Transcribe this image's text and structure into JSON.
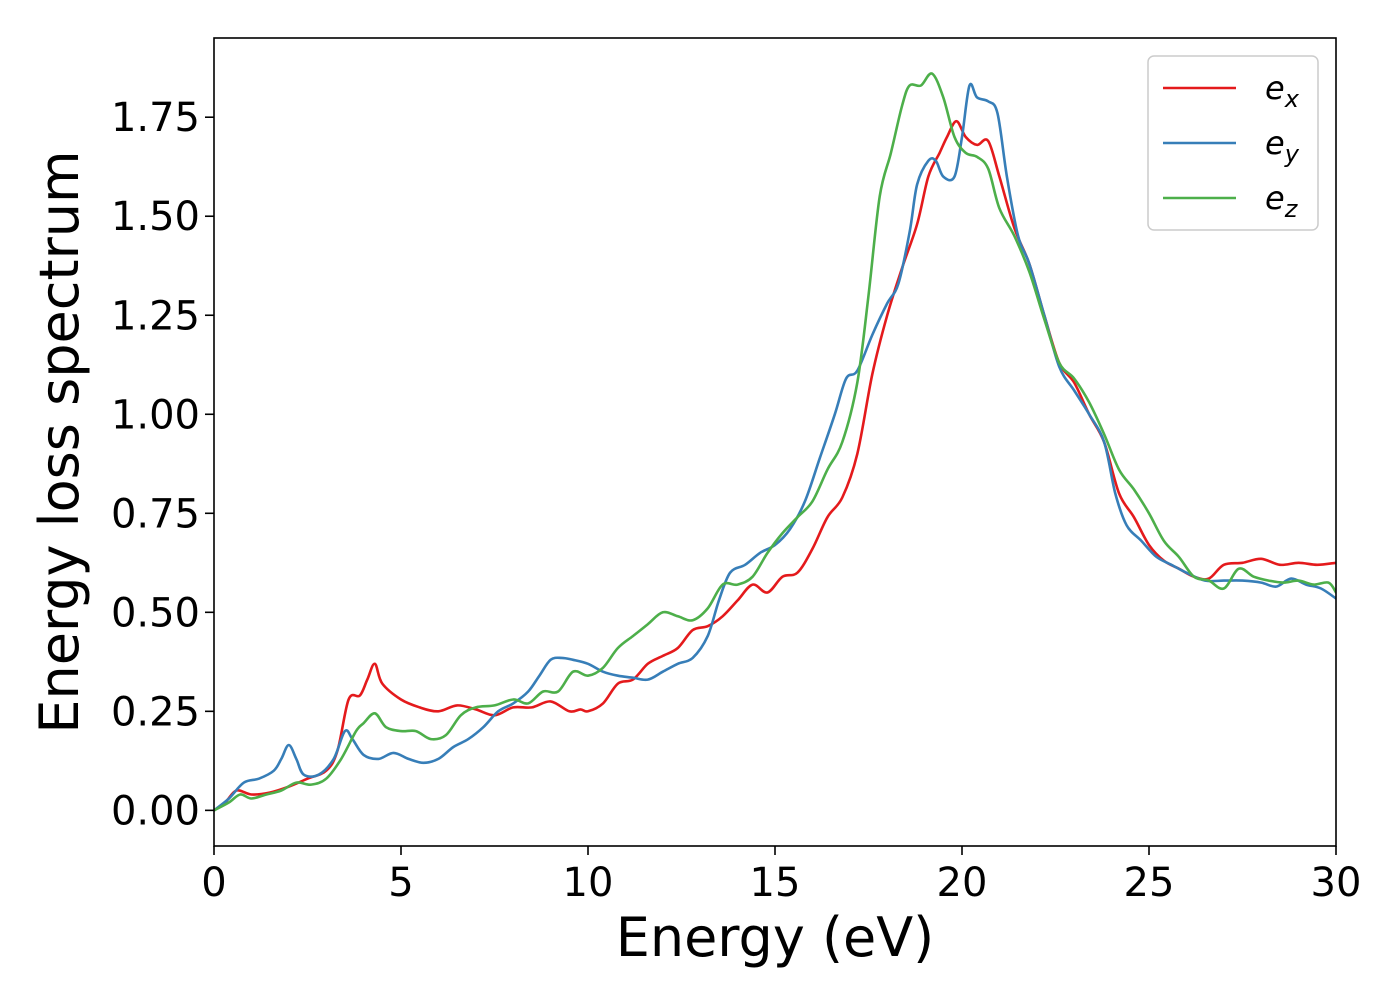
{
  "chart_data": {
    "type": "line",
    "title": "",
    "xlabel": "Energy (eV)",
    "ylabel": "Energy loss spectrum",
    "xlim": [
      0,
      30
    ],
    "ylim": [
      -0.09,
      1.95
    ],
    "xticks": [
      0,
      5,
      10,
      15,
      20,
      25,
      30
    ],
    "xtick_labels": [
      "0",
      "5",
      "10",
      "15",
      "20",
      "25",
      "30"
    ],
    "yticks": [
      0.0,
      0.25,
      0.5,
      0.75,
      1.0,
      1.25,
      1.5,
      1.75
    ],
    "ytick_labels": [
      "0.00",
      "0.25",
      "0.50",
      "0.75",
      "1.00",
      "1.25",
      "1.50",
      "1.75"
    ],
    "grid": false,
    "legend_position": "top-right",
    "series": [
      {
        "name": "e_x",
        "label_base": "e",
        "label_sub": "x",
        "color": "#e41a1c",
        "points": [
          [
            0,
            0
          ],
          [
            0.3,
            0.02
          ],
          [
            0.6,
            0.05
          ],
          [
            1.0,
            0.04
          ],
          [
            1.5,
            0.045
          ],
          [
            2.0,
            0.06
          ],
          [
            2.5,
            0.08
          ],
          [
            3.0,
            0.1
          ],
          [
            3.3,
            0.15
          ],
          [
            3.6,
            0.28
          ],
          [
            3.9,
            0.29
          ],
          [
            4.1,
            0.33
          ],
          [
            4.3,
            0.37
          ],
          [
            4.5,
            0.32
          ],
          [
            5.0,
            0.28
          ],
          [
            5.5,
            0.26
          ],
          [
            6.0,
            0.25
          ],
          [
            6.5,
            0.265
          ],
          [
            7.0,
            0.255
          ],
          [
            7.5,
            0.24
          ],
          [
            8.0,
            0.26
          ],
          [
            8.5,
            0.26
          ],
          [
            9.0,
            0.275
          ],
          [
            9.5,
            0.25
          ],
          [
            9.8,
            0.255
          ],
          [
            10.0,
            0.25
          ],
          [
            10.4,
            0.27
          ],
          [
            10.8,
            0.32
          ],
          [
            11.2,
            0.33
          ],
          [
            11.6,
            0.37
          ],
          [
            12.0,
            0.39
          ],
          [
            12.4,
            0.41
          ],
          [
            12.8,
            0.455
          ],
          [
            13.2,
            0.465
          ],
          [
            13.6,
            0.49
          ],
          [
            14.0,
            0.53
          ],
          [
            14.4,
            0.57
          ],
          [
            14.8,
            0.55
          ],
          [
            15.2,
            0.59
          ],
          [
            15.6,
            0.6
          ],
          [
            16.0,
            0.66
          ],
          [
            16.4,
            0.74
          ],
          [
            16.8,
            0.79
          ],
          [
            17.2,
            0.9
          ],
          [
            17.6,
            1.1
          ],
          [
            18.0,
            1.25
          ],
          [
            18.4,
            1.37
          ],
          [
            18.8,
            1.48
          ],
          [
            19.1,
            1.6
          ],
          [
            19.4,
            1.66
          ],
          [
            19.6,
            1.7
          ],
          [
            19.85,
            1.74
          ],
          [
            20.1,
            1.7
          ],
          [
            20.4,
            1.68
          ],
          [
            20.7,
            1.69
          ],
          [
            21.0,
            1.6
          ],
          [
            21.4,
            1.47
          ],
          [
            21.8,
            1.38
          ],
          [
            22.2,
            1.25
          ],
          [
            22.6,
            1.13
          ],
          [
            23.0,
            1.08
          ],
          [
            23.4,
            1.0
          ],
          [
            23.8,
            0.93
          ],
          [
            24.2,
            0.8
          ],
          [
            24.6,
            0.74
          ],
          [
            25.0,
            0.67
          ],
          [
            25.4,
            0.63
          ],
          [
            25.8,
            0.61
          ],
          [
            26.2,
            0.59
          ],
          [
            26.6,
            0.585
          ],
          [
            27.0,
            0.62
          ],
          [
            27.5,
            0.625
          ],
          [
            28.0,
            0.635
          ],
          [
            28.5,
            0.62
          ],
          [
            29.0,
            0.625
          ],
          [
            29.5,
            0.62
          ],
          [
            30.0,
            0.625
          ]
        ]
      },
      {
        "name": "e_y",
        "label_base": "e",
        "label_sub": "y",
        "color": "#377eb8",
        "points": [
          [
            0,
            0
          ],
          [
            0.4,
            0.03
          ],
          [
            0.8,
            0.07
          ],
          [
            1.2,
            0.08
          ],
          [
            1.6,
            0.1
          ],
          [
            1.8,
            0.13
          ],
          [
            2.0,
            0.165
          ],
          [
            2.2,
            0.13
          ],
          [
            2.4,
            0.09
          ],
          [
            2.8,
            0.09
          ],
          [
            3.2,
            0.13
          ],
          [
            3.5,
            0.2
          ],
          [
            3.7,
            0.18
          ],
          [
            4.0,
            0.14
          ],
          [
            4.4,
            0.13
          ],
          [
            4.8,
            0.145
          ],
          [
            5.2,
            0.13
          ],
          [
            5.6,
            0.12
          ],
          [
            6.0,
            0.13
          ],
          [
            6.4,
            0.16
          ],
          [
            6.8,
            0.18
          ],
          [
            7.2,
            0.21
          ],
          [
            7.6,
            0.25
          ],
          [
            8.0,
            0.27
          ],
          [
            8.4,
            0.3
          ],
          [
            8.7,
            0.34
          ],
          [
            9.0,
            0.38
          ],
          [
            9.3,
            0.385
          ],
          [
            9.6,
            0.38
          ],
          [
            10.0,
            0.37
          ],
          [
            10.4,
            0.35
          ],
          [
            10.8,
            0.34
          ],
          [
            11.2,
            0.335
          ],
          [
            11.6,
            0.33
          ],
          [
            12.0,
            0.35
          ],
          [
            12.4,
            0.37
          ],
          [
            12.8,
            0.385
          ],
          [
            13.2,
            0.44
          ],
          [
            13.5,
            0.53
          ],
          [
            13.8,
            0.6
          ],
          [
            14.2,
            0.62
          ],
          [
            14.6,
            0.65
          ],
          [
            15.0,
            0.67
          ],
          [
            15.4,
            0.71
          ],
          [
            15.8,
            0.78
          ],
          [
            16.2,
            0.89
          ],
          [
            16.6,
            1.0
          ],
          [
            16.9,
            1.09
          ],
          [
            17.2,
            1.11
          ],
          [
            17.6,
            1.2
          ],
          [
            18.0,
            1.28
          ],
          [
            18.3,
            1.33
          ],
          [
            18.6,
            1.46
          ],
          [
            18.8,
            1.58
          ],
          [
            19.1,
            1.64
          ],
          [
            19.3,
            1.64
          ],
          [
            19.5,
            1.6
          ],
          [
            19.8,
            1.6
          ],
          [
            20.0,
            1.7
          ],
          [
            20.2,
            1.83
          ],
          [
            20.4,
            1.8
          ],
          [
            20.7,
            1.79
          ],
          [
            20.95,
            1.76
          ],
          [
            21.2,
            1.6
          ],
          [
            21.5,
            1.45
          ],
          [
            21.8,
            1.38
          ],
          [
            22.2,
            1.25
          ],
          [
            22.6,
            1.12
          ],
          [
            23.0,
            1.06
          ],
          [
            23.4,
            1.0
          ],
          [
            23.8,
            0.93
          ],
          [
            24.1,
            0.8
          ],
          [
            24.4,
            0.72
          ],
          [
            24.8,
            0.68
          ],
          [
            25.2,
            0.64
          ],
          [
            25.6,
            0.62
          ],
          [
            26.0,
            0.6
          ],
          [
            26.5,
            0.58
          ],
          [
            27.0,
            0.58
          ],
          [
            27.5,
            0.58
          ],
          [
            28.0,
            0.575
          ],
          [
            28.4,
            0.565
          ],
          [
            28.8,
            0.585
          ],
          [
            29.2,
            0.57
          ],
          [
            29.6,
            0.56
          ],
          [
            30.0,
            0.535
          ]
        ]
      },
      {
        "name": "e_z",
        "label_base": "e",
        "label_sub": "z",
        "color": "#4daf4a",
        "points": [
          [
            0,
            0
          ],
          [
            0.4,
            0.02
          ],
          [
            0.7,
            0.04
          ],
          [
            1.0,
            0.03
          ],
          [
            1.4,
            0.04
          ],
          [
            1.8,
            0.05
          ],
          [
            2.2,
            0.07
          ],
          [
            2.6,
            0.065
          ],
          [
            3.0,
            0.08
          ],
          [
            3.4,
            0.13
          ],
          [
            3.8,
            0.2
          ],
          [
            4.0,
            0.22
          ],
          [
            4.3,
            0.245
          ],
          [
            4.6,
            0.21
          ],
          [
            5.0,
            0.2
          ],
          [
            5.4,
            0.2
          ],
          [
            5.8,
            0.18
          ],
          [
            6.2,
            0.19
          ],
          [
            6.6,
            0.24
          ],
          [
            7.0,
            0.26
          ],
          [
            7.5,
            0.265
          ],
          [
            8.0,
            0.28
          ],
          [
            8.4,
            0.27
          ],
          [
            8.8,
            0.3
          ],
          [
            9.2,
            0.3
          ],
          [
            9.6,
            0.35
          ],
          [
            10.0,
            0.34
          ],
          [
            10.4,
            0.36
          ],
          [
            10.8,
            0.41
          ],
          [
            11.2,
            0.44
          ],
          [
            11.6,
            0.47
          ],
          [
            12.0,
            0.5
          ],
          [
            12.4,
            0.49
          ],
          [
            12.8,
            0.48
          ],
          [
            13.2,
            0.51
          ],
          [
            13.6,
            0.57
          ],
          [
            14.0,
            0.57
          ],
          [
            14.4,
            0.59
          ],
          [
            14.8,
            0.65
          ],
          [
            15.2,
            0.7
          ],
          [
            15.6,
            0.74
          ],
          [
            16.0,
            0.78
          ],
          [
            16.4,
            0.86
          ],
          [
            16.8,
            0.93
          ],
          [
            17.2,
            1.08
          ],
          [
            17.5,
            1.3
          ],
          [
            17.8,
            1.55
          ],
          [
            18.1,
            1.66
          ],
          [
            18.4,
            1.78
          ],
          [
            18.6,
            1.83
          ],
          [
            18.9,
            1.83
          ],
          [
            19.2,
            1.86
          ],
          [
            19.5,
            1.8
          ],
          [
            19.8,
            1.7
          ],
          [
            20.1,
            1.66
          ],
          [
            20.4,
            1.65
          ],
          [
            20.7,
            1.62
          ],
          [
            21.0,
            1.52
          ],
          [
            21.4,
            1.45
          ],
          [
            21.8,
            1.36
          ],
          [
            22.2,
            1.24
          ],
          [
            22.6,
            1.13
          ],
          [
            23.0,
            1.09
          ],
          [
            23.4,
            1.03
          ],
          [
            23.8,
            0.95
          ],
          [
            24.2,
            0.86
          ],
          [
            24.6,
            0.81
          ],
          [
            25.0,
            0.75
          ],
          [
            25.4,
            0.68
          ],
          [
            25.8,
            0.64
          ],
          [
            26.2,
            0.59
          ],
          [
            26.6,
            0.58
          ],
          [
            27.0,
            0.56
          ],
          [
            27.4,
            0.61
          ],
          [
            27.8,
            0.59
          ],
          [
            28.2,
            0.58
          ],
          [
            28.6,
            0.575
          ],
          [
            29.0,
            0.58
          ],
          [
            29.4,
            0.57
          ],
          [
            29.8,
            0.575
          ],
          [
            30.0,
            0.55
          ]
        ]
      }
    ]
  }
}
